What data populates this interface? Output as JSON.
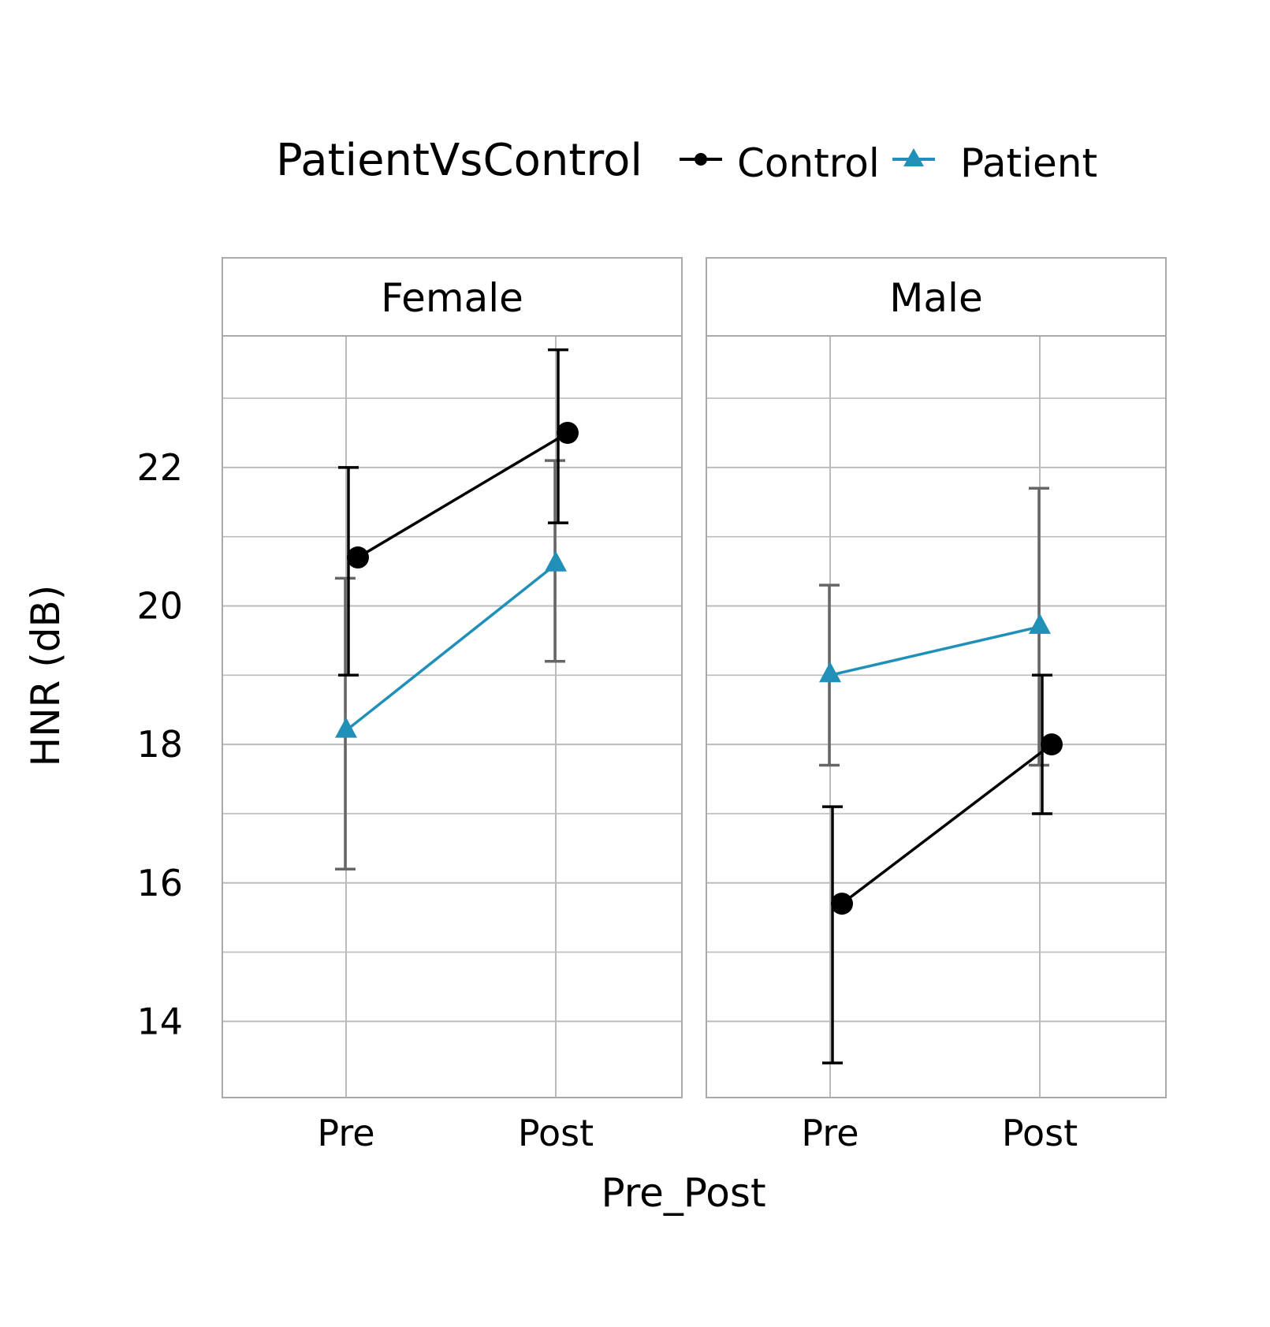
{
  "chart_data": {
    "type": "line",
    "title": "",
    "xlabel": "Pre_Post",
    "ylabel": "HNR (dB)",
    "ylim": [
      12.9,
      23.9
    ],
    "yticks": [
      14,
      16,
      18,
      20,
      22
    ],
    "grid": true,
    "legend": {
      "title": "PatientVsControl",
      "position": "top",
      "entries": [
        "Control",
        "Patient"
      ]
    },
    "categories": [
      "Pre",
      "Post"
    ],
    "facets": [
      {
        "label": "Female",
        "series": [
          {
            "name": "Control",
            "values": [
              20.7,
              22.5
            ],
            "error_low": [
              19.0,
              21.2
            ],
            "error_high": [
              22.0,
              23.7
            ]
          },
          {
            "name": "Patient",
            "values": [
              18.2,
              20.6
            ],
            "error_low": [
              16.2,
              19.2
            ],
            "error_high": [
              20.4,
              22.1
            ]
          }
        ]
      },
      {
        "label": "Male",
        "series": [
          {
            "name": "Control",
            "values": [
              15.7,
              18.0
            ],
            "error_low": [
              13.4,
              17.0
            ],
            "error_high": [
              17.1,
              19.0
            ]
          },
          {
            "name": "Patient",
            "values": [
              19.0,
              19.7
            ],
            "error_low": [
              17.7,
              17.7
            ],
            "error_high": [
              20.3,
              21.7
            ]
          }
        ]
      }
    ],
    "colors": {
      "Control": "#000000",
      "Patient": "#2190b9",
      "patient_errorbar": "#666666",
      "grid": "#bbbbbb",
      "panel_border": "#aaaaaa"
    }
  }
}
